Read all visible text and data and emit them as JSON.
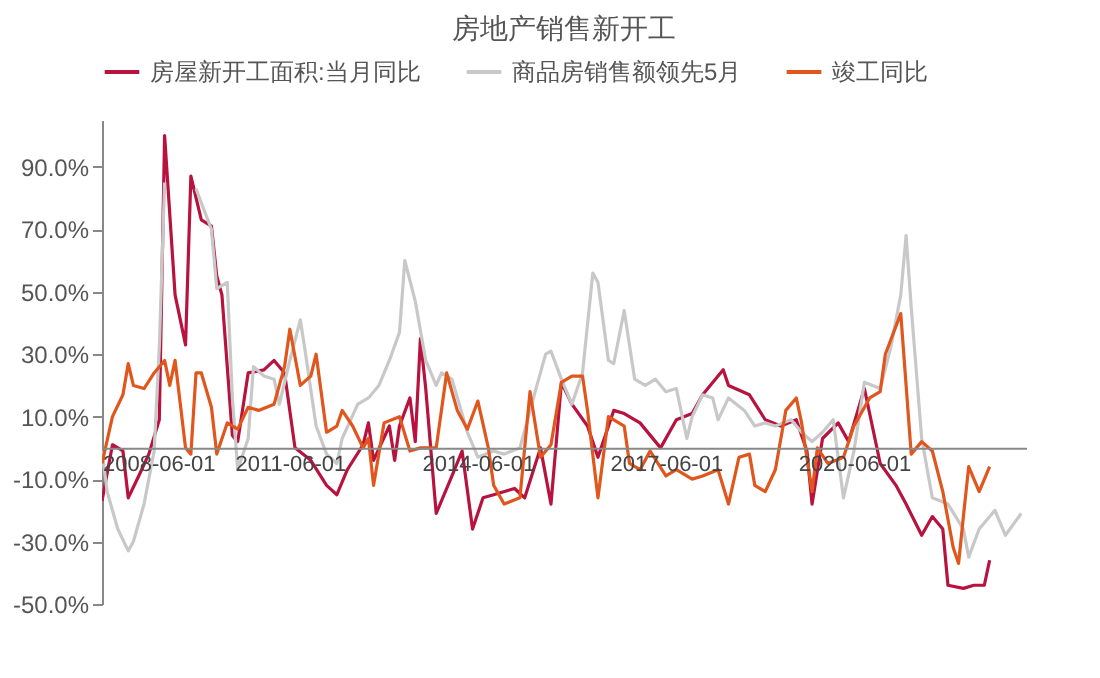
{
  "chart_data": {
    "type": "line",
    "title": "房地产销售新开工",
    "xlim": [
      "2008-06-01",
      "2023-03-01"
    ],
    "xticks": [
      "2008-06-01",
      "2011-06-01",
      "2014-06-01",
      "2017-06-01",
      "2020-06-01"
    ],
    "ylim": [
      -50,
      105
    ],
    "yticks": [
      {
        "value": -50,
        "label": "-50.0%"
      },
      {
        "value": -30,
        "label": "-30.0%"
      },
      {
        "value": -10,
        "label": "-10.0%"
      },
      {
        "value": 10,
        "label": "10.0%"
      },
      {
        "value": 30,
        "label": "30.0%"
      },
      {
        "value": 50,
        "label": "50.0%"
      },
      {
        "value": 70,
        "label": "70.0%"
      },
      {
        "value": 90,
        "label": "90.0%"
      }
    ],
    "legend": "top",
    "series": [
      {
        "name": "房屋新开工面积:当月同比",
        "color": "#b8123f",
        "x": [
          "2008-06",
          "2008-08",
          "2008-10",
          "2008-11",
          "2009-01",
          "2009-03",
          "2009-05",
          "2009-06",
          "2009-08",
          "2009-10",
          "2009-11",
          "2010-01",
          "2010-03",
          "2010-04",
          "2010-05",
          "2010-07",
          "2010-08",
          "2010-10",
          "2011-01",
          "2011-03",
          "2011-05",
          "2011-07",
          "2011-10",
          "2012-01",
          "2012-03",
          "2012-05",
          "2012-08",
          "2012-09",
          "2012-10",
          "2013-01",
          "2013-02",
          "2013-03",
          "2013-05",
          "2013-06",
          "2013-07",
          "2013-08",
          "2013-10",
          "2014-01",
          "2014-03",
          "2014-05",
          "2014-07",
          "2014-09",
          "2015-01",
          "2015-03",
          "2015-06",
          "2015-08",
          "2015-10",
          "2015-12",
          "2016-03",
          "2016-05",
          "2016-08",
          "2016-10",
          "2017-01",
          "2017-05",
          "2017-08",
          "2017-11",
          "2018-01",
          "2018-05",
          "2018-06",
          "2018-10",
          "2019-01",
          "2019-04",
          "2019-07",
          "2019-09",
          "2019-10",
          "2019-12",
          "2020-03",
          "2020-05",
          "2020-08",
          "2020-11",
          "2021-02",
          "2021-04",
          "2021-07",
          "2021-09",
          "2021-11",
          "2021-12",
          "2022-03",
          "2022-05",
          "2022-07",
          "2022-08"
        ],
        "values": [
          -17,
          1,
          -1,
          -16,
          -9,
          -2,
          9,
          100,
          49,
          33,
          87,
          73,
          71,
          55,
          49,
          4,
          2,
          24,
          25,
          28,
          24,
          0,
          -4,
          -12,
          -15,
          -7,
          1,
          8,
          -4,
          7,
          -4,
          7,
          16,
          2,
          35,
          19,
          -21,
          -9,
          -1,
          -26,
          -16,
          -15,
          -13,
          -16,
          0,
          -18,
          21,
          14,
          7,
          -3,
          12,
          11,
          8,
          0,
          9,
          11,
          17,
          25,
          20,
          17,
          9,
          7,
          9,
          -1,
          -18,
          3,
          8,
          2,
          19,
          -5,
          -12,
          -18,
          -28,
          -22,
          -26,
          -44,
          -45,
          -44,
          -44,
          -36
        ]
      },
      {
        "name": "商品房销售额领先5月",
        "color": "#c8c8c8",
        "x": [
          "2008-06",
          "2008-07",
          "2008-09",
          "2008-11",
          "2008-12",
          "2009-02",
          "2009-04",
          "2009-05",
          "2009-06",
          "2009-08",
          "2009-10",
          "2009-12",
          "2010-02",
          "2010-03",
          "2010-04",
          "2010-06",
          "2010-07",
          "2010-08",
          "2010-10",
          "2010-11",
          "2011-01",
          "2011-03",
          "2011-04",
          "2011-06",
          "2011-08",
          "2011-09",
          "2011-11",
          "2012-01",
          "2012-03",
          "2012-04",
          "2012-07",
          "2012-09",
          "2012-11",
          "2013-01",
          "2013-03",
          "2013-04",
          "2013-06",
          "2013-08",
          "2013-10",
          "2013-11",
          "2014-01",
          "2014-04",
          "2014-06",
          "2014-09",
          "2014-11",
          "2015-02",
          "2015-05",
          "2015-07",
          "2015-08",
          "2015-10",
          "2015-12",
          "2016-02",
          "2016-04",
          "2016-05",
          "2016-07",
          "2016-08",
          "2016-10",
          "2016-12",
          "2017-02",
          "2017-04",
          "2017-06",
          "2017-08",
          "2017-10",
          "2017-11",
          "2018-01",
          "2018-03",
          "2018-04",
          "2018-06",
          "2018-09",
          "2018-11",
          "2019-01",
          "2019-03",
          "2019-06",
          "2019-08",
          "2019-10",
          "2019-12",
          "2020-02",
          "2020-04",
          "2020-06",
          "2020-08",
          "2020-11",
          "2021-01",
          "2021-03",
          "2021-04",
          "2021-05",
          "2021-07",
          "2021-09",
          "2021-12",
          "2022-03",
          "2022-04",
          "2022-06",
          "2022-09",
          "2022-11",
          "2023-02"
        ],
        "values": [
          -1,
          -14,
          -26,
          -33,
          -30,
          -18,
          -1,
          32,
          85,
          null,
          null,
          83,
          74,
          70,
          51,
          53,
          16,
          -7,
          3,
          26,
          23,
          22,
          14,
          28,
          41,
          30,
          7,
          -2,
          -5,
          3,
          14,
          16,
          20,
          28,
          37,
          60,
          47,
          28,
          20,
          24,
          22,
          5,
          -3,
          -1,
          -2,
          0,
          18,
          30,
          31,
          22,
          14,
          24,
          56,
          53,
          28,
          27,
          44,
          22,
          20,
          22,
          18,
          19,
          3,
          10,
          17,
          16,
          9,
          16,
          12,
          7,
          8,
          7,
          9,
          5,
          2,
          5,
          9,
          -16,
          -1,
          21,
          19,
          32,
          49,
          68,
          45,
          3,
          -16,
          -18,
          -26,
          -35,
          -26,
          -20,
          -28,
          -21
        ]
      },
      {
        "name": "竣工同比",
        "color": "#e0561c",
        "x": [
          "2008-06",
          "2008-08",
          "2008-10",
          "2008-11",
          "2008-12",
          "2009-02",
          "2009-04",
          "2009-06",
          "2009-07",
          "2009-08",
          "2009-10",
          "2009-11",
          "2009-12",
          "2010-01",
          "2010-03",
          "2010-04",
          "2010-06",
          "2010-08",
          "2010-10",
          "2010-12",
          "2011-03",
          "2011-05",
          "2011-06",
          "2011-08",
          "2011-10",
          "2011-11",
          "2012-01",
          "2012-03",
          "2012-04",
          "2012-06",
          "2012-08",
          "2012-09",
          "2012-10",
          "2012-12",
          "2013-03",
          "2013-05",
          "2013-07",
          "2013-10",
          "2013-12",
          "2014-02",
          "2014-04",
          "2014-06",
          "2014-08",
          "2014-09",
          "2014-11",
          "2015-02",
          "2015-04",
          "2015-06",
          "2015-08",
          "2015-10",
          "2015-12",
          "2016-02",
          "2016-03",
          "2016-05",
          "2016-07",
          "2016-10",
          "2016-11",
          "2017-01",
          "2017-03",
          "2017-06",
          "2017-08",
          "2017-11",
          "2018-01",
          "2018-04",
          "2018-06",
          "2018-08",
          "2018-10",
          "2018-11",
          "2019-01",
          "2019-03",
          "2019-05",
          "2019-07",
          "2019-08",
          "2019-10",
          "2019-11",
          "2020-01",
          "2020-04",
          "2020-06",
          "2020-09",
          "2020-11",
          "2020-12",
          "2021-03",
          "2021-05",
          "2021-07",
          "2021-09",
          "2021-11",
          "2022-01",
          "2022-02",
          "2022-03",
          "2022-04",
          "2022-06",
          "2022-08"
        ],
        "values": [
          -5,
          10,
          17,
          27,
          20,
          19,
          24,
          28,
          20,
          28,
          0,
          -2,
          24,
          24,
          13,
          -2,
          8,
          6,
          13,
          12,
          14,
          26,
          38,
          20,
          23,
          30,
          5,
          7,
          12,
          7,
          0,
          3,
          -12,
          8,
          10,
          -1,
          0,
          0,
          24,
          12,
          6,
          15,
          0,
          -12,
          -18,
          -16,
          18,
          -3,
          1,
          21,
          23,
          23,
          12,
          -16,
          10,
          7,
          -5,
          -7,
          -1,
          -9,
          -7,
          -10,
          -9,
          -7,
          -18,
          -3,
          -2,
          -12,
          -14,
          -7,
          12,
          16,
          8,
          -14,
          0,
          -5,
          -3,
          7,
          16,
          18,
          30,
          43,
          -2,
          2,
          -1,
          -14,
          -32,
          -37,
          -22,
          -6,
          -14,
          -6
        ]
      }
    ]
  }
}
